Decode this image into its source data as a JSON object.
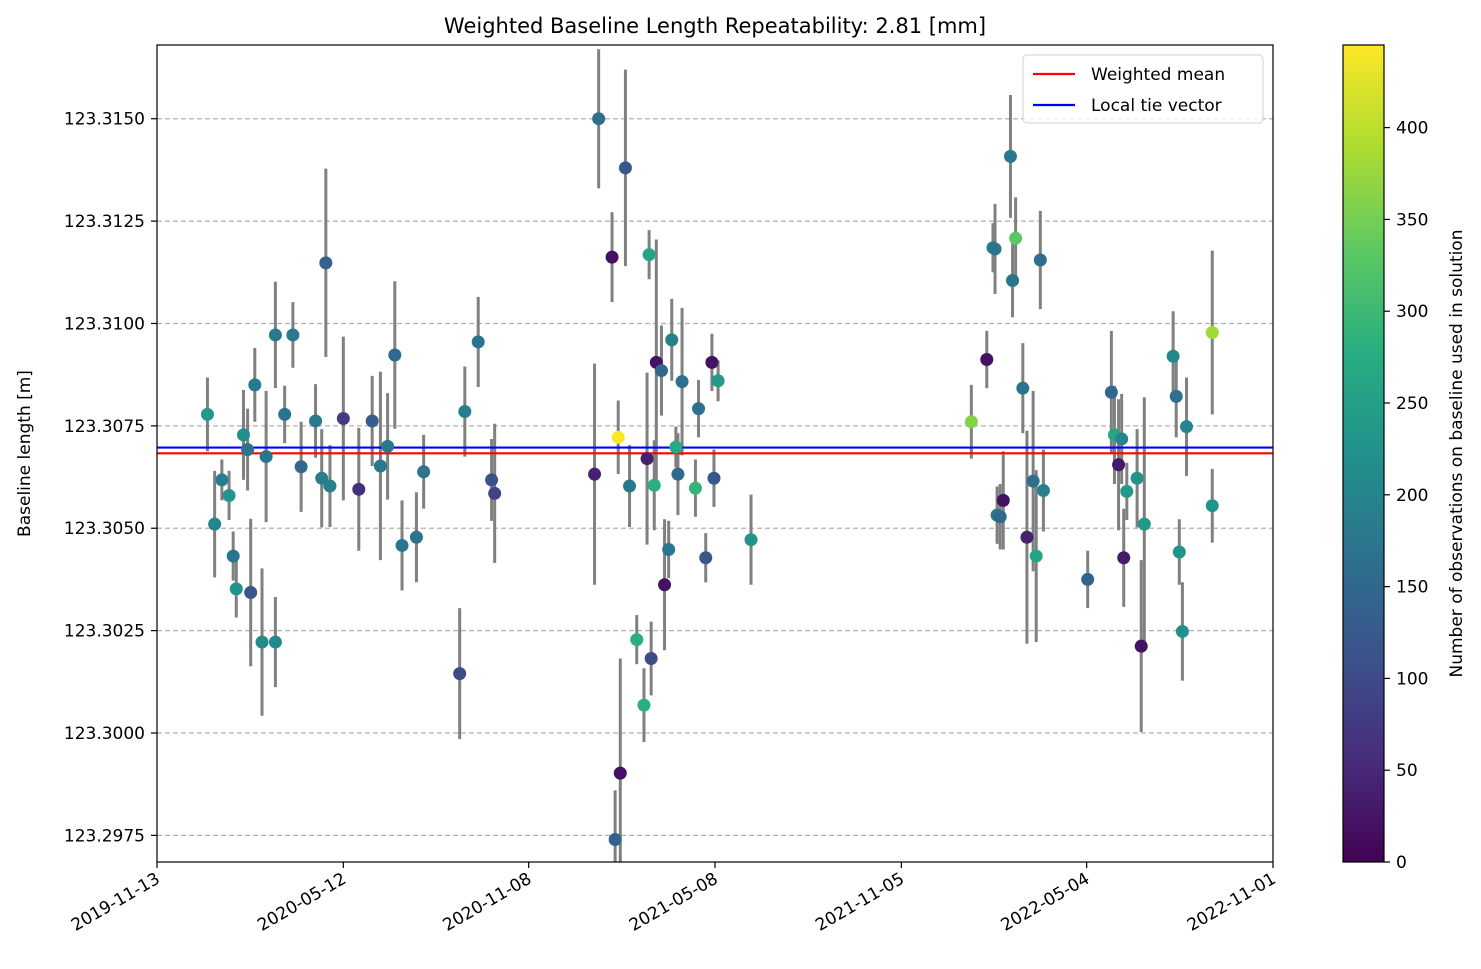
{
  "chart_data": {
    "type": "scatter",
    "title": "Weighted Baseline Length Repeatability: 2.81 [mm]",
    "xlabel": "",
    "ylabel": "Baseline length [m]",
    "x_axis_type": "date",
    "xlim": [
      "2019-11-13",
      "2022-11-01"
    ],
    "xticks": [
      "2019-11-13",
      "2020-05-12",
      "2020-11-08",
      "2021-05-08",
      "2021-11-05",
      "2022-05-04",
      "2022-11-01"
    ],
    "ylim": [
      123.29685,
      123.3168
    ],
    "yticks": [
      "123.2975",
      "123.3000",
      "123.3025",
      "123.3050",
      "123.3075",
      "123.3100",
      "123.3125",
      "123.3150"
    ],
    "grid": "horizontal dashed",
    "legend": {
      "placement": "top-right",
      "entries": [
        {
          "label": "Weighted mean",
          "color": "#ff0000"
        },
        {
          "label": "Local tie vector",
          "color": "#0000ff"
        }
      ]
    },
    "colorbar": {
      "label": "Number of observations on baseline used in solution",
      "colormap": "viridis",
      "range": [
        0,
        445
      ],
      "ticks": [
        "0",
        "50",
        "100",
        "150",
        "200",
        "250",
        "300",
        "350",
        "400"
      ]
    },
    "lines": [
      {
        "name": "Weighted mean",
        "y": 123.30683,
        "color": "#ff0000"
      },
      {
        "name": "Local tie vector",
        "y": 123.30697,
        "color": "#0000ff"
      }
    ],
    "points": [
      {
        "x": "2020-01-01",
        "y": 123.30778,
        "err": 0.0009,
        "c": 240
      },
      {
        "x": "2020-01-08",
        "y": 123.3051,
        "err": 0.0013,
        "c": 200
      },
      {
        "x": "2020-01-15",
        "y": 123.30618,
        "err": 0.0005,
        "c": 190
      },
      {
        "x": "2020-01-22",
        "y": 123.3058,
        "err": 0.0006,
        "c": 230
      },
      {
        "x": "2020-01-26",
        "y": 123.30432,
        "err": 0.0006,
        "c": 170
      },
      {
        "x": "2020-01-29",
        "y": 123.30352,
        "err": 0.0007,
        "c": 230
      },
      {
        "x": "2020-02-05",
        "y": 123.30728,
        "err": 0.0011,
        "c": 220
      },
      {
        "x": "2020-02-09",
        "y": 123.30692,
        "err": 0.001,
        "c": 170
      },
      {
        "x": "2020-02-12",
        "y": 123.30343,
        "err": 0.0018,
        "c": 120
      },
      {
        "x": "2020-02-16",
        "y": 123.3085,
        "err": 0.0009,
        "c": 180
      },
      {
        "x": "2020-02-23",
        "y": 123.30222,
        "err": 0.0018,
        "c": 210
      },
      {
        "x": "2020-02-27",
        "y": 123.30675,
        "err": 0.0016,
        "c": 170
      },
      {
        "x": "2020-03-07",
        "y": 123.30222,
        "err": 0.0011,
        "c": 210
      },
      {
        "x": "2020-03-07",
        "y": 123.30972,
        "err": 0.0013,
        "c": 180
      },
      {
        "x": "2020-03-16",
        "y": 123.30778,
        "err": 0.0007,
        "c": 170
      },
      {
        "x": "2020-03-24",
        "y": 123.30972,
        "err": 0.0008,
        "c": 180
      },
      {
        "x": "2020-04-01",
        "y": 123.3065,
        "err": 0.0011,
        "c": 150
      },
      {
        "x": "2020-04-15",
        "y": 123.30762,
        "err": 0.0009,
        "c": 180
      },
      {
        "x": "2020-04-21",
        "y": 123.30622,
        "err": 0.0012,
        "c": 190
      },
      {
        "x": "2020-04-25",
        "y": 123.31148,
        "err": 0.0023,
        "c": 140
      },
      {
        "x": "2020-04-29",
        "y": 123.30603,
        "err": 0.001,
        "c": 190
      },
      {
        "x": "2020-05-12",
        "y": 123.30768,
        "err": 0.002,
        "c": 80
      },
      {
        "x": "2020-05-27",
        "y": 123.30595,
        "err": 0.0015,
        "c": 60
      },
      {
        "x": "2020-06-09",
        "y": 123.30762,
        "err": 0.0011,
        "c": 130
      },
      {
        "x": "2020-06-17",
        "y": 123.30652,
        "err": 0.0023,
        "c": 180
      },
      {
        "x": "2020-06-24",
        "y": 123.307,
        "err": 0.0013,
        "c": 180
      },
      {
        "x": "2020-07-01",
        "y": 123.30923,
        "err": 0.0018,
        "c": 150
      },
      {
        "x": "2020-07-08",
        "y": 123.30458,
        "err": 0.0011,
        "c": 170
      },
      {
        "x": "2020-07-22",
        "y": 123.30478,
        "err": 0.0011,
        "c": 170
      },
      {
        "x": "2020-07-29",
        "y": 123.30638,
        "err": 0.0009,
        "c": 170
      },
      {
        "x": "2020-09-02",
        "y": 123.30145,
        "err": 0.0016,
        "c": 100
      },
      {
        "x": "2020-09-07",
        "y": 123.30785,
        "err": 0.0011,
        "c": 190
      },
      {
        "x": "2020-09-20",
        "y": 123.30955,
        "err": 0.0011,
        "c": 170
      },
      {
        "x": "2020-10-03",
        "y": 123.30618,
        "err": 0.001,
        "c": 110
      },
      {
        "x": "2020-10-06",
        "y": 123.30585,
        "err": 0.0017,
        "c": 90
      },
      {
        "x": "2021-01-11",
        "y": 123.30632,
        "err": 0.0027,
        "c": 40
      },
      {
        "x": "2021-01-15",
        "y": 123.315,
        "err": 0.0017,
        "c": 160
      },
      {
        "x": "2021-01-28",
        "y": 123.31162,
        "err": 0.0011,
        "c": 20
      },
      {
        "x": "2021-01-31",
        "y": 123.2974,
        "err": 0.0012,
        "c": 140
      },
      {
        "x": "2021-02-03",
        "y": 123.30722,
        "err": 0.0009,
        "c": 445
      },
      {
        "x": "2021-02-05",
        "y": 123.29902,
        "err": 0.0028,
        "c": 20
      },
      {
        "x": "2021-02-10",
        "y": 123.3138,
        "err": 0.0024,
        "c": 120
      },
      {
        "x": "2021-02-14",
        "y": 123.30603,
        "err": 0.001,
        "c": 180
      },
      {
        "x": "2021-02-21",
        "y": 123.30228,
        "err": 0.0006,
        "c": 280
      },
      {
        "x": "2021-02-28",
        "y": 123.30068,
        "err": 0.0009,
        "c": 280
      },
      {
        "x": "2021-03-03",
        "y": 123.3067,
        "err": 0.0021,
        "c": 40
      },
      {
        "x": "2021-03-05",
        "y": 123.31168,
        "err": 0.0006,
        "c": 260
      },
      {
        "x": "2021-03-07",
        "y": 123.30182,
        "err": 0.0009,
        "c": 100
      },
      {
        "x": "2021-03-10",
        "y": 123.30605,
        "err": 0.0011,
        "c": 280
      },
      {
        "x": "2021-03-12",
        "y": 123.30905,
        "err": 0.003,
        "c": 20
      },
      {
        "x": "2021-03-17",
        "y": 123.30885,
        "err": 0.0011,
        "c": 150
      },
      {
        "x": "2021-03-20",
        "y": 123.30362,
        "err": 0.0016,
        "c": 20
      },
      {
        "x": "2021-03-24",
        "y": 123.30448,
        "err": 0.0007,
        "c": 170
      },
      {
        "x": "2021-03-27",
        "y": 123.3096,
        "err": 0.001,
        "c": 190
      },
      {
        "x": "2021-03-31",
        "y": 123.30698,
        "err": 0.0005,
        "c": 270
      },
      {
        "x": "2021-04-02",
        "y": 123.30632,
        "err": 0.001,
        "c": 150
      },
      {
        "x": "2021-04-06",
        "y": 123.30858,
        "err": 0.0018,
        "c": 160
      },
      {
        "x": "2021-04-19",
        "y": 123.30598,
        "err": 0.0007,
        "c": 290
      },
      {
        "x": "2021-04-22",
        "y": 123.30792,
        "err": 0.0007,
        "c": 160
      },
      {
        "x": "2021-04-29",
        "y": 123.30428,
        "err": 0.0006,
        "c": 120
      },
      {
        "x": "2021-05-05",
        "y": 123.30905,
        "err": 0.0007,
        "c": 20
      },
      {
        "x": "2021-05-07",
        "y": 123.30622,
        "err": 0.0007,
        "c": 120
      },
      {
        "x": "2021-05-11",
        "y": 123.3086,
        "err": 0.0005,
        "c": 240
      },
      {
        "x": "2021-06-12",
        "y": 123.30472,
        "err": 0.0011,
        "c": 230
      },
      {
        "x": "2022-01-12",
        "y": 123.3076,
        "err": 0.0009,
        "c": 360
      },
      {
        "x": "2022-01-27",
        "y": 123.30912,
        "err": 0.0007,
        "c": 20
      },
      {
        "x": "2022-02-02",
        "y": 123.31185,
        "err": 0.0006,
        "c": 190
      },
      {
        "x": "2022-02-04",
        "y": 123.31182,
        "err": 0.0011,
        "c": 170
      },
      {
        "x": "2022-02-06",
        "y": 123.30532,
        "err": 0.0007,
        "c": 170
      },
      {
        "x": "2022-02-09",
        "y": 123.30528,
        "err": 0.0008,
        "c": 150
      },
      {
        "x": "2022-02-12",
        "y": 123.30568,
        "err": 0.0012,
        "c": 20
      },
      {
        "x": "2022-02-19",
        "y": 123.31408,
        "err": 0.0015,
        "c": 180
      },
      {
        "x": "2022-02-21",
        "y": 123.31105,
        "err": 0.0009,
        "c": 170
      },
      {
        "x": "2022-02-24",
        "y": 123.31208,
        "err": 0.001,
        "c": 330
      },
      {
        "x": "2022-03-03",
        "y": 123.30842,
        "err": 0.0011,
        "c": 170
      },
      {
        "x": "2022-03-07",
        "y": 123.30478,
        "err": 0.0026,
        "c": 40
      },
      {
        "x": "2022-03-13",
        "y": 123.30615,
        "err": 0.0022,
        "c": 160
      },
      {
        "x": "2022-03-16",
        "y": 123.30432,
        "err": 0.0021,
        "c": 260
      },
      {
        "x": "2022-03-20",
        "y": 123.31155,
        "err": 0.0012,
        "c": 160
      },
      {
        "x": "2022-03-23",
        "y": 123.30592,
        "err": 0.001,
        "c": 190
      },
      {
        "x": "2022-05-05",
        "y": 123.30375,
        "err": 0.0007,
        "c": 140
      },
      {
        "x": "2022-05-28",
        "y": 123.30832,
        "err": 0.0015,
        "c": 150
      },
      {
        "x": "2022-05-31",
        "y": 123.30728,
        "err": 0.0012,
        "c": 260
      },
      {
        "x": "2022-06-04",
        "y": 123.30655,
        "err": 0.0016,
        "c": 30
      },
      {
        "x": "2022-06-07",
        "y": 123.30718,
        "err": 0.0011,
        "c": 200
      },
      {
        "x": "2022-06-09",
        "y": 123.30428,
        "err": 0.0012,
        "c": 30
      },
      {
        "x": "2022-06-12",
        "y": 123.3059,
        "err": 0.0007,
        "c": 240
      },
      {
        "x": "2022-06-22",
        "y": 123.30622,
        "err": 0.0012,
        "c": 230
      },
      {
        "x": "2022-06-26",
        "y": 123.30212,
        "err": 0.0021,
        "c": 20
      },
      {
        "x": "2022-06-29",
        "y": 123.3051,
        "err": 0.0031,
        "c": 240
      },
      {
        "x": "2022-07-27",
        "y": 123.3092,
        "err": 0.0011,
        "c": 210
      },
      {
        "x": "2022-07-30",
        "y": 123.30822,
        "err": 0.001,
        "c": 160
      },
      {
        "x": "2022-08-02",
        "y": 123.30442,
        "err": 0.0008,
        "c": 230
      },
      {
        "x": "2022-08-05",
        "y": 123.30248,
        "err": 0.0012,
        "c": 220
      },
      {
        "x": "2022-08-09",
        "y": 123.30748,
        "err": 0.0012,
        "c": 200
      },
      {
        "x": "2022-09-03",
        "y": 123.30555,
        "err": 0.0009,
        "c": 230
      },
      {
        "x": "2022-09-03",
        "y": 123.30978,
        "err": 0.002,
        "c": 380
      }
    ]
  }
}
